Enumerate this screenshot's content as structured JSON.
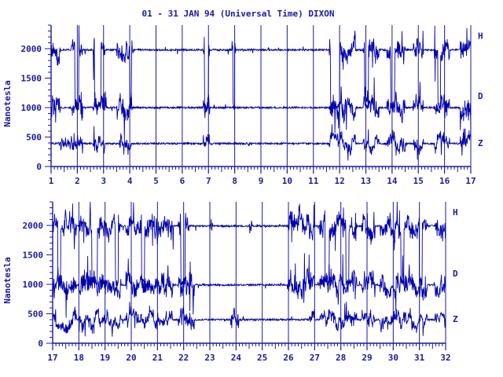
{
  "title": "01 - 31 JAN 94 (Universal Time) DIXON",
  "colors": {
    "line": "#0000aa",
    "axis": "#1a1aa0",
    "text": "#1a1aa0",
    "background": "#ffffff"
  },
  "chart_data": [
    {
      "type": "line",
      "ylabel": "Nanotesla",
      "ylim": [
        0,
        2400
      ],
      "yticks": [
        0,
        500,
        1000,
        1500,
        2000
      ],
      "ytick_labels": [
        "0",
        "500",
        "1000",
        "1500",
        "2000"
      ],
      "xlim": [
        1,
        17
      ],
      "xticks": [
        1,
        2,
        3,
        4,
        5,
        6,
        7,
        8,
        9,
        10,
        11,
        12,
        13,
        14,
        15,
        16,
        17
      ],
      "xtick_labels": [
        "1",
        "2",
        "3",
        "4",
        "5",
        "6",
        "7",
        "8",
        "9",
        "10",
        "11",
        "12",
        "13",
        "14",
        "15",
        "16",
        "17"
      ],
      "grid": "vertical lines at day boundaries",
      "series": [
        {
          "name": "H",
          "baseline": 1980,
          "disturbed_intervals": [
            [
              1.0,
              1.35
            ],
            [
              1.75,
              2.2
            ],
            [
              2.6,
              3.05
            ],
            [
              3.5,
              4.1
            ],
            [
              6.8,
              7.05
            ],
            [
              7.9,
              8.05
            ],
            [
              11.6,
              12.6
            ],
            [
              12.9,
              13.5
            ],
            [
              13.8,
              14.5
            ],
            [
              14.8,
              15.2
            ],
            [
              15.6,
              16.2
            ],
            [
              16.6,
              17.0
            ]
          ],
          "low_intervals": [
            [
              1.9,
              2.05
            ],
            [
              2.65,
              2.9
            ],
            [
              4.0,
              4.07
            ],
            [
              6.85,
              7.0
            ],
            [
              7.93,
              8.0
            ],
            [
              11.65,
              12.0
            ],
            [
              12.95,
              13.1
            ],
            [
              13.95,
              14.1
            ],
            [
              15.75,
              15.85
            ]
          ]
        },
        {
          "name": "D",
          "baseline": 1000,
          "disturbed_intervals": [
            [
              1.0,
              1.35
            ],
            [
              1.75,
              2.2
            ],
            [
              2.6,
              3.1
            ],
            [
              3.5,
              4.1
            ],
            [
              6.8,
              7.05
            ],
            [
              11.6,
              12.6
            ],
            [
              12.9,
              13.5
            ],
            [
              13.8,
              14.5
            ],
            [
              14.8,
              15.2
            ],
            [
              15.6,
              16.2
            ],
            [
              16.6,
              17.0
            ]
          ]
        },
        {
          "name": "Z",
          "baseline": 390,
          "disturbed_intervals": [
            [
              1.3,
              2.2
            ],
            [
              2.6,
              3.05
            ],
            [
              3.6,
              4.05
            ],
            [
              6.8,
              7.05
            ],
            [
              11.6,
              12.6
            ],
            [
              12.9,
              13.5
            ],
            [
              13.8,
              14.5
            ],
            [
              14.8,
              15.2
            ],
            [
              15.6,
              16.2
            ],
            [
              16.6,
              17.0
            ]
          ]
        }
      ]
    },
    {
      "type": "line",
      "ylabel": "Nanotesla",
      "ylim": [
        0,
        2400
      ],
      "yticks": [
        0,
        500,
        1000,
        1500,
        2000
      ],
      "ytick_labels": [
        "0",
        "500",
        "1000",
        "1500",
        "2000"
      ],
      "xlim": [
        17,
        32
      ],
      "xticks": [
        17,
        18,
        19,
        20,
        21,
        22,
        23,
        24,
        25,
        26,
        27,
        28,
        29,
        30,
        31,
        32
      ],
      "xtick_labels": [
        "17",
        "18",
        "19",
        "20",
        "21",
        "22",
        "23",
        "24",
        "25",
        "26",
        "27",
        "28",
        "29",
        "30",
        "31",
        "32"
      ],
      "grid": "vertical lines at day boundaries",
      "series": [
        {
          "name": "H",
          "baseline": 1990,
          "disturbed_intervals": [
            [
              17.0,
              17.9
            ],
            [
              18.0,
              19.6
            ],
            [
              19.8,
              21.6
            ],
            [
              21.8,
              22.2
            ],
            [
              23.0,
              23.1
            ],
            [
              24.5,
              24.6
            ],
            [
              26.0,
              27.0
            ],
            [
              27.2,
              28.6
            ],
            [
              28.8,
              29.3
            ],
            [
              29.5,
              31.3
            ],
            [
              31.6,
              32.0
            ]
          ],
          "low_intervals": [
            [
              17.2,
              17.3
            ],
            [
              18.5,
              18.7
            ],
            [
              19.4,
              19.5
            ],
            [
              20.4,
              20.5
            ],
            [
              21.9,
              22.05
            ],
            [
              27.4,
              27.55
            ],
            [
              28.2,
              28.3
            ],
            [
              30.3,
              30.4
            ],
            [
              31.0,
              31.1
            ]
          ]
        },
        {
          "name": "D",
          "baseline": 990,
          "disturbed_intervals": [
            [
              17.0,
              17.9
            ],
            [
              18.0,
              19.6
            ],
            [
              19.8,
              21.6
            ],
            [
              21.8,
              22.4
            ],
            [
              26.0,
              27.0
            ],
            [
              27.2,
              28.6
            ],
            [
              28.8,
              29.3
            ],
            [
              29.5,
              31.3
            ],
            [
              31.6,
              32.0
            ]
          ]
        },
        {
          "name": "Z",
          "baseline": 400,
          "disturbed_intervals": [
            [
              17.0,
              17.9
            ],
            [
              18.0,
              19.6
            ],
            [
              19.8,
              21.6
            ],
            [
              21.8,
              22.4
            ],
            [
              23.8,
              24.1
            ],
            [
              26.8,
              27.0
            ],
            [
              27.2,
              28.6
            ],
            [
              28.8,
              29.3
            ],
            [
              29.5,
              31.3
            ],
            [
              31.6,
              32.0
            ]
          ]
        }
      ]
    }
  ]
}
